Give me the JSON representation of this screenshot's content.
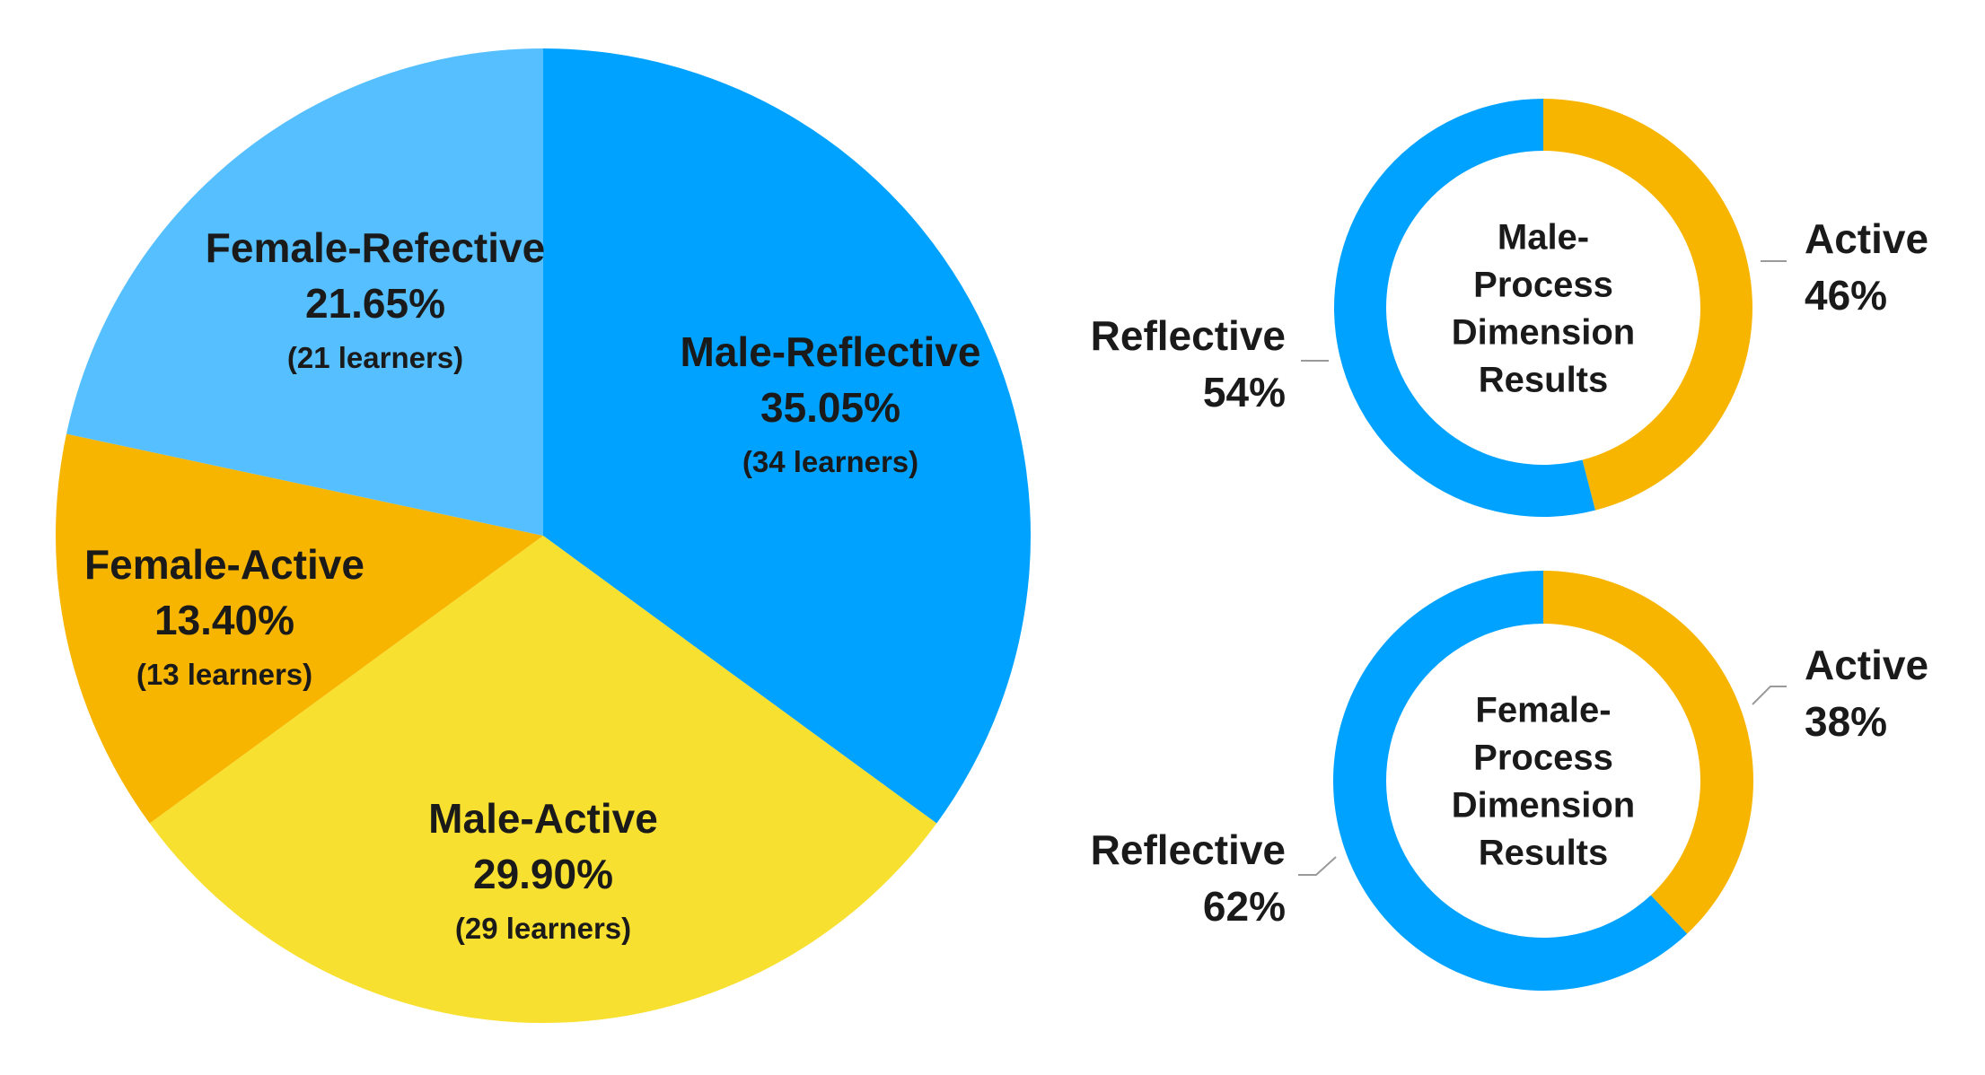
{
  "chart_data": [
    {
      "type": "pie",
      "title": "",
      "slices": [
        {
          "name": "Male-Reflective",
          "percent_label": "35.05%",
          "count_label": "(34 learners)",
          "value": 35.05,
          "learners": 34,
          "color": "#00A2FF"
        },
        {
          "name": "Male-Active",
          "percent_label": "29.90%",
          "count_label": "(29 learners)",
          "value": 29.9,
          "learners": 29,
          "color": "#F8E031"
        },
        {
          "name": "Female-Active",
          "percent_label": "13.40%",
          "count_label": "(13 learners)",
          "value": 13.4,
          "learners": 13,
          "color": "#F7B500"
        },
        {
          "name": "Female-Refective",
          "percent_label": "21.65%",
          "count_label": "(21 learners)",
          "value": 21.65,
          "learners": 21,
          "color": "#56BFFF"
        }
      ]
    },
    {
      "type": "pie",
      "variant": "donut",
      "center_label": [
        "Male-",
        "Process",
        "Dimension",
        "Results"
      ],
      "slices": [
        {
          "name": "Active",
          "percent_label": "46%",
          "value": 46,
          "color": "#F7B500"
        },
        {
          "name": "Reflective",
          "percent_label": "54%",
          "value": 54,
          "color": "#00A2FF"
        }
      ]
    },
    {
      "type": "pie",
      "variant": "donut",
      "center_label": [
        "Female-",
        "Process",
        "Dimension",
        "Results"
      ],
      "slices": [
        {
          "name": "Active",
          "percent_label": "38%",
          "value": 38,
          "color": "#F7B500"
        },
        {
          "name": "Reflective",
          "percent_label": "62%",
          "value": 62,
          "color": "#00A2FF"
        }
      ]
    }
  ]
}
